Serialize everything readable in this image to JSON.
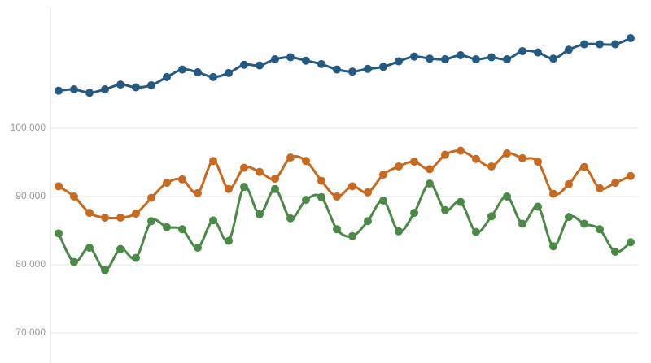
{
  "chart_data": {
    "type": "line",
    "categories": [
      null,
      null,
      null,
      null,
      null,
      null,
      null,
      null,
      null,
      null,
      null,
      null,
      null,
      null,
      null,
      null,
      null,
      null,
      null,
      null,
      null,
      null,
      null,
      null,
      null,
      null,
      null,
      null,
      null,
      null,
      null,
      null,
      null,
      null,
      null,
      null,
      null,
      null
    ],
    "series": [
      {
        "color": "#245a82",
        "values": [
          105500,
          105700,
          105200,
          105700,
          106400,
          106000,
          106300,
          107500,
          108600,
          108200,
          107500,
          108100,
          109300,
          109200,
          110100,
          110400,
          109900,
          109400,
          108600,
          108300,
          108700,
          109000,
          109800,
          110500,
          110200,
          110100,
          110700,
          110100,
          110400,
          110100,
          111300,
          111100,
          110200,
          111500,
          112300,
          112300,
          112300,
          113200
        ]
      },
      {
        "color": "#c8691f",
        "values": [
          91500,
          90000,
          87600,
          86900,
          86900,
          87500,
          89800,
          92000,
          92500,
          90500,
          95200,
          91100,
          94200,
          93600,
          92600,
          95700,
          95200,
          92300,
          90000,
          91500,
          90600,
          93200,
          94400,
          95100,
          94000,
          96100,
          96700,
          95500,
          94400,
          96300,
          95600,
          95100,
          90400,
          91800,
          94300,
          91200,
          92000,
          93000
        ]
      },
      {
        "color": "#4a8a46",
        "values": [
          84600,
          80400,
          82500,
          79200,
          82300,
          81000,
          86400,
          85500,
          85200,
          82500,
          86500,
          83500,
          91400,
          87400,
          91100,
          86800,
          89500,
          89900,
          85200,
          84200,
          86400,
          89400,
          84900,
          87600,
          91900,
          88000,
          89200,
          84800,
          87100,
          90000,
          86000,
          88500,
          82700,
          87000,
          86000,
          85200,
          81900,
          83300
        ]
      }
    ],
    "ylim": [
      65600,
      117600
    ],
    "yticks": [
      {
        "value": 70000,
        "label": "70,000"
      },
      {
        "value": 80000,
        "label": "80,000"
      },
      {
        "value": 90000,
        "label": "90,000"
      },
      {
        "value": 100000,
        "label": "100,000"
      }
    ],
    "grid": true
  }
}
